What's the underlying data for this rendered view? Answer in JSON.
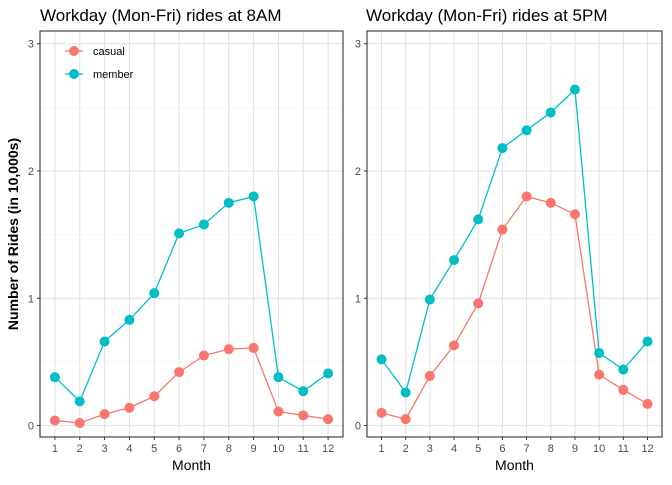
{
  "chart_data": [
    {
      "type": "line",
      "title": "Workday (Mon-Fri) rides at 8AM",
      "xlabel": "Month",
      "ylabel": "Number of Rides (in 10,000s)",
      "x": [
        1,
        2,
        3,
        4,
        5,
        6,
        7,
        8,
        9,
        10,
        11,
        12
      ],
      "xticks": [
        "1",
        "2",
        "3",
        "4",
        "5",
        "6",
        "7",
        "8",
        "9",
        "10",
        "11",
        "12"
      ],
      "yticks": [
        "0",
        "1",
        "2",
        "3"
      ],
      "ylim": [
        -0.09,
        3.1
      ],
      "legend_position": "top-left",
      "series": [
        {
          "name": "casual",
          "color": "#F8766D",
          "values": [
            0.04,
            0.02,
            0.09,
            0.14,
            0.23,
            0.42,
            0.55,
            0.6,
            0.61,
            0.11,
            0.08,
            0.05
          ]
        },
        {
          "name": "member",
          "color": "#00BFC4",
          "values": [
            0.38,
            0.19,
            0.66,
            0.83,
            1.04,
            1.51,
            1.58,
            1.75,
            1.8,
            0.38,
            0.27,
            0.41
          ]
        }
      ]
    },
    {
      "type": "line",
      "title": "Workday (Mon-Fri) rides at 5PM",
      "xlabel": "Month",
      "ylabel": "",
      "x": [
        1,
        2,
        3,
        4,
        5,
        6,
        7,
        8,
        9,
        10,
        11,
        12
      ],
      "xticks": [
        "1",
        "2",
        "3",
        "4",
        "5",
        "6",
        "7",
        "8",
        "9",
        "10",
        "11",
        "12"
      ],
      "yticks": [
        "0",
        "1",
        "2",
        "3"
      ],
      "ylim": [
        -0.09,
        3.1
      ],
      "series": [
        {
          "name": "casual",
          "color": "#F8766D",
          "values": [
            0.1,
            0.05,
            0.39,
            0.63,
            0.96,
            1.54,
            1.8,
            1.75,
            1.66,
            0.4,
            0.28,
            0.17
          ]
        },
        {
          "name": "member",
          "color": "#00BFC4",
          "values": [
            0.52,
            0.26,
            0.99,
            1.3,
            1.62,
            2.18,
            2.32,
            2.46,
            2.64,
            0.57,
            0.44,
            0.66
          ]
        }
      ]
    }
  ]
}
